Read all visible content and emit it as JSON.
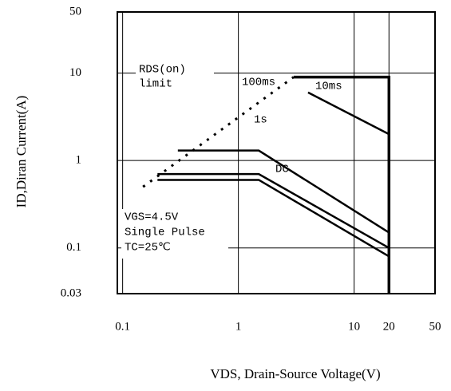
{
  "chart_data": {
    "type": "line",
    "log_x": true,
    "log_y": true,
    "grid": true,
    "xlabel": "VDS, Drain-Source Voltage(V)",
    "ylabel": "ID,Diran Current(A)",
    "xlim": [
      0.09,
      50
    ],
    "ylim": [
      0.03,
      50
    ],
    "xticks": [
      0.1,
      1,
      10,
      20,
      50
    ],
    "yticks": [
      0.03,
      0.1,
      1,
      10,
      50
    ],
    "color": "#000000",
    "series": [
      {
        "name": "10ms",
        "x": [
          4,
          20
        ],
        "values": [
          6,
          2
        ]
      },
      {
        "name": "100ms",
        "x": [
          0.3,
          1.5,
          20
        ],
        "values": [
          1.3,
          1.3,
          0.15
        ]
      },
      {
        "name": "1s",
        "x": [
          0.2,
          1.5,
          20
        ],
        "values": [
          0.7,
          0.7,
          0.1
        ]
      },
      {
        "name": "DC",
        "x": [
          0.2,
          1.5,
          20
        ],
        "values": [
          0.6,
          0.6,
          0.08
        ]
      }
    ],
    "boundary": {
      "x": [
        3,
        20,
        20
      ],
      "values": [
        9,
        9,
        0.03
      ]
    },
    "rds_limit": {
      "label": [
        "RDS(on)",
        "limit"
      ],
      "x": [
        0.15,
        3
      ],
      "values": [
        0.5,
        9
      ]
    },
    "conditions": [
      "VGS=4.5V",
      "Single Pulse",
      "TC=25℃"
    ]
  }
}
